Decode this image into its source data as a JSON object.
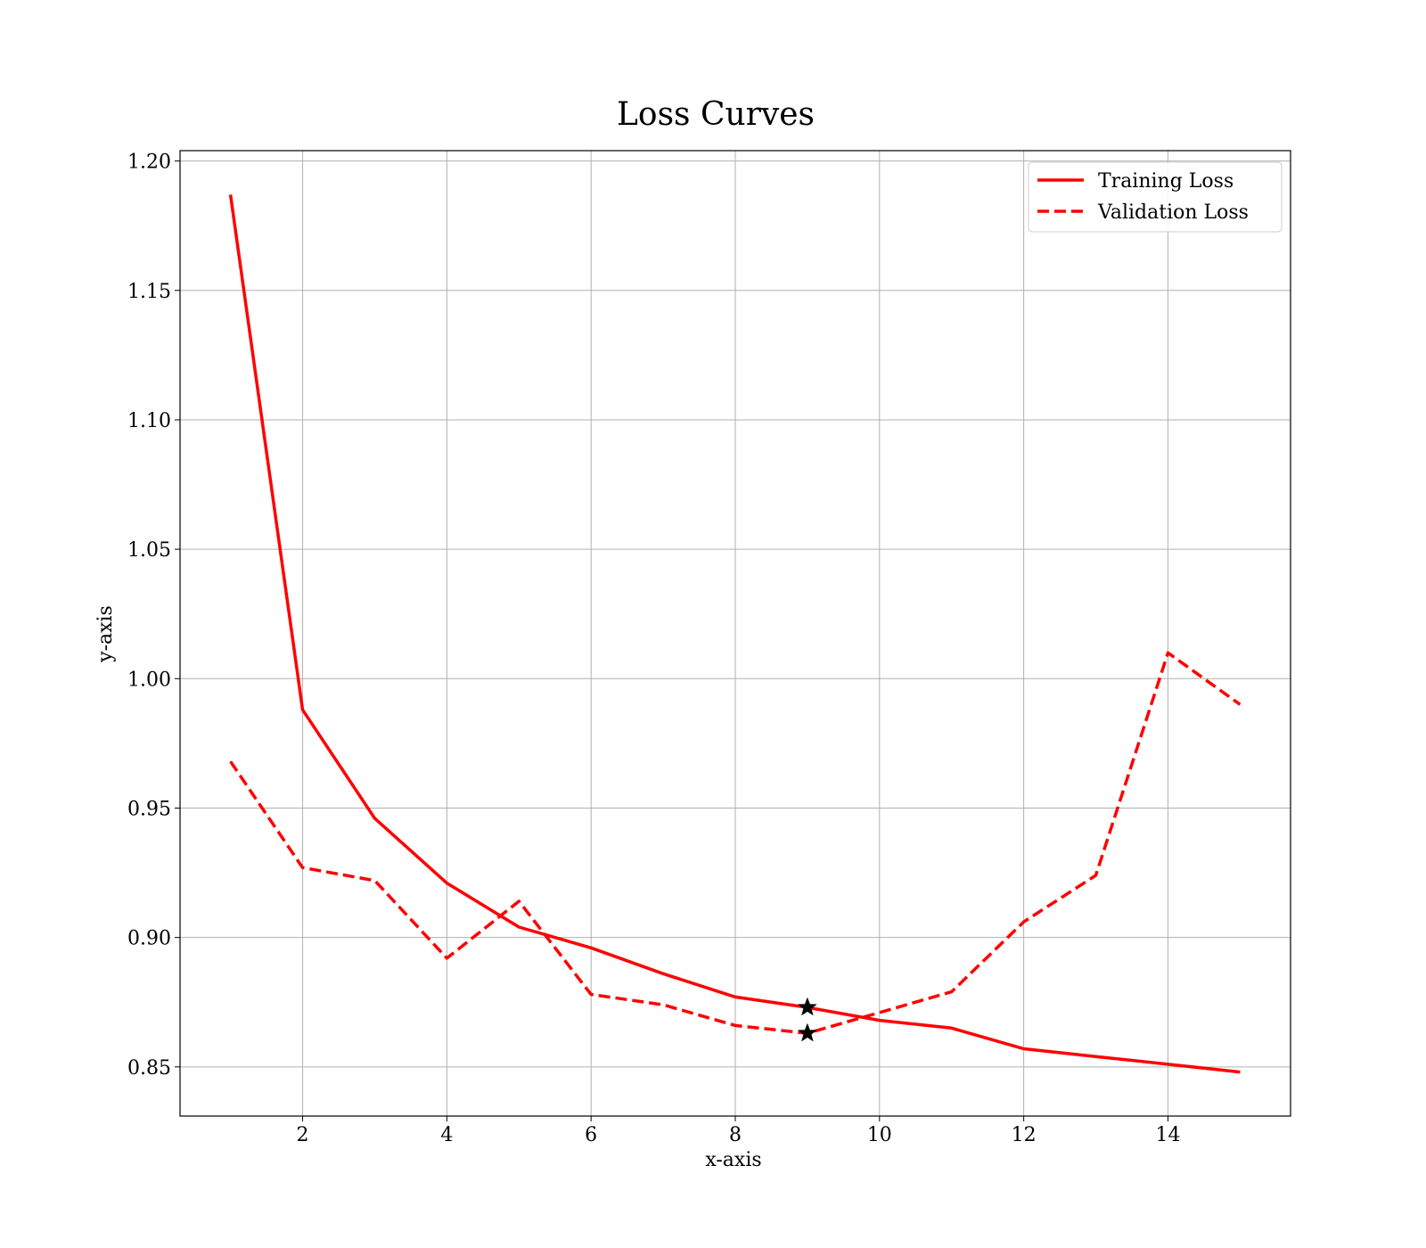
{
  "chart_data": {
    "type": "line",
    "title": "Loss Curves",
    "xlabel": "x-axis",
    "ylabel": "y-axis",
    "xlim": [
      0.3,
      15.7
    ],
    "ylim": [
      0.831,
      1.204
    ],
    "xticks": [
      2,
      4,
      6,
      8,
      10,
      12,
      14
    ],
    "yticks": [
      0.85,
      0.9,
      0.95,
      1.0,
      1.05,
      1.1,
      1.15,
      1.2
    ],
    "ytick_labels": [
      "0.85",
      "0.90",
      "0.95",
      "1.00",
      "1.05",
      "1.10",
      "1.15",
      "1.20"
    ],
    "grid": true,
    "legend_position": "top-right",
    "x": [
      1,
      2,
      3,
      4,
      5,
      6,
      7,
      8,
      9,
      10,
      11,
      12,
      13,
      14,
      15
    ],
    "series": [
      {
        "name": "Training Loss",
        "style": "solid",
        "color": "#ff0000",
        "values": [
          1.187,
          0.988,
          0.946,
          0.921,
          0.904,
          0.896,
          0.886,
          0.877,
          0.873,
          0.868,
          0.865,
          0.857,
          0.854,
          0.851,
          0.848
        ]
      },
      {
        "name": "Validation Loss",
        "style": "dashed",
        "color": "#ff0000",
        "values": [
          0.968,
          0.927,
          0.922,
          0.892,
          0.914,
          0.878,
          0.874,
          0.866,
          0.863,
          0.871,
          0.879,
          0.906,
          0.924,
          1.01,
          0.99
        ]
      }
    ],
    "markers": [
      {
        "series": "Training Loss",
        "x": 9,
        "y": 0.873,
        "symbol": "star",
        "color": "#000000"
      },
      {
        "series": "Validation Loss",
        "x": 9,
        "y": 0.863,
        "symbol": "star",
        "color": "#000000"
      }
    ]
  }
}
